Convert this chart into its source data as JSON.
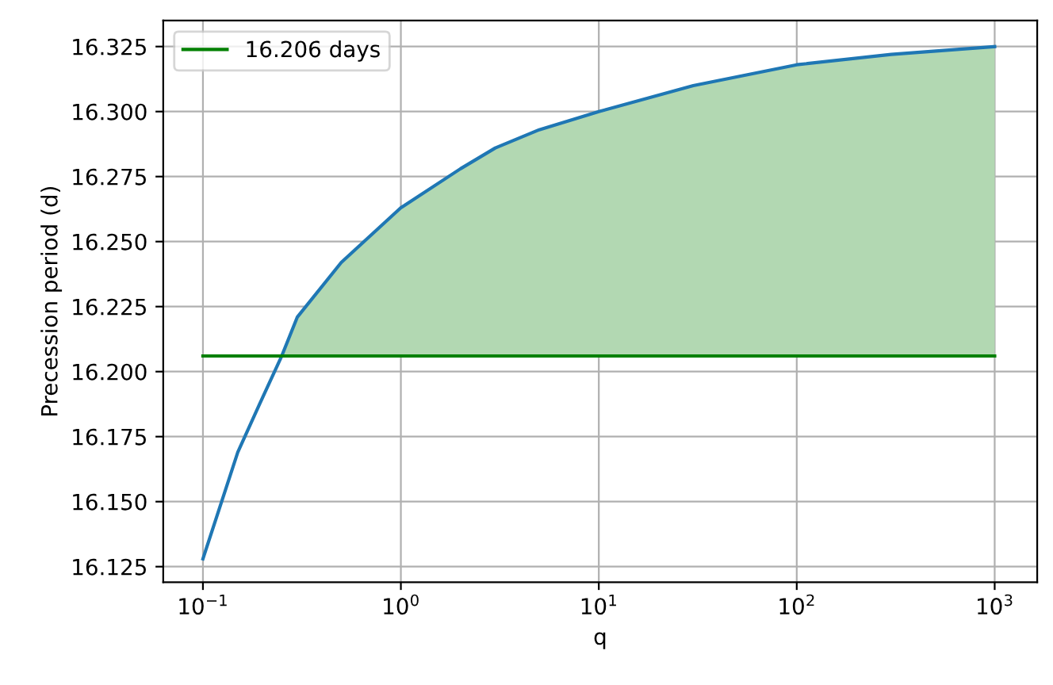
{
  "chart_data": {
    "type": "line",
    "xlabel": "q",
    "ylabel": "Precession period (d)",
    "x": [
      0.1,
      0.15,
      0.2,
      0.25,
      0.3,
      0.5,
      1,
      2,
      3,
      5,
      10,
      30,
      100,
      300,
      1000
    ],
    "series": [
      {
        "color": "#1f77b4",
        "values": [
          16.128,
          16.169,
          16.19,
          16.206,
          16.221,
          16.242,
          16.263,
          16.278,
          16.286,
          16.293,
          16.3,
          16.31,
          16.318,
          16.322,
          16.325
        ],
        "lower": [
          null,
          null,
          null,
          16.206,
          16.206,
          16.206,
          16.206,
          16.206,
          16.206,
          16.206,
          16.206,
          16.206,
          16.206,
          16.206,
          16.206
        ],
        "upper": [
          null,
          null,
          null,
          16.206,
          16.221,
          16.242,
          16.263,
          16.278,
          16.286,
          16.293,
          16.3,
          16.31,
          16.318,
          16.322,
          16.325
        ]
      },
      {
        "name": "16.206 days",
        "color": "#008000",
        "x": [
          0.1,
          1000
        ],
        "values": [
          16.206,
          16.206
        ]
      }
    ],
    "log": "x",
    "xlim": [
      0.063,
      1640
    ],
    "ylim": [
      16.119,
      16.335
    ],
    "xticks": [
      {
        "value": 0.1,
        "label": "10$^{−1}$"
      },
      {
        "value": 1,
        "label": "10$^{0}$"
      },
      {
        "value": 10,
        "label": "10$^{1}$"
      },
      {
        "value": 100,
        "label": "10$^{2}$"
      },
      {
        "value": 1000,
        "label": "10$^{3}$"
      }
    ],
    "yticks": [
      {
        "value": 16.125,
        "label": "16.125"
      },
      {
        "value": 16.15,
        "label": "16.150"
      },
      {
        "value": 16.175,
        "label": "16.175"
      },
      {
        "value": 16.2,
        "label": "16.200"
      },
      {
        "value": 16.225,
        "label": "16.225"
      },
      {
        "value": 16.25,
        "label": "16.250"
      },
      {
        "value": 16.275,
        "label": "16.275"
      },
      {
        "value": 16.3,
        "label": "16.300"
      },
      {
        "value": 16.325,
        "label": "16.325"
      }
    ],
    "grid": true,
    "legend": "top left"
  }
}
